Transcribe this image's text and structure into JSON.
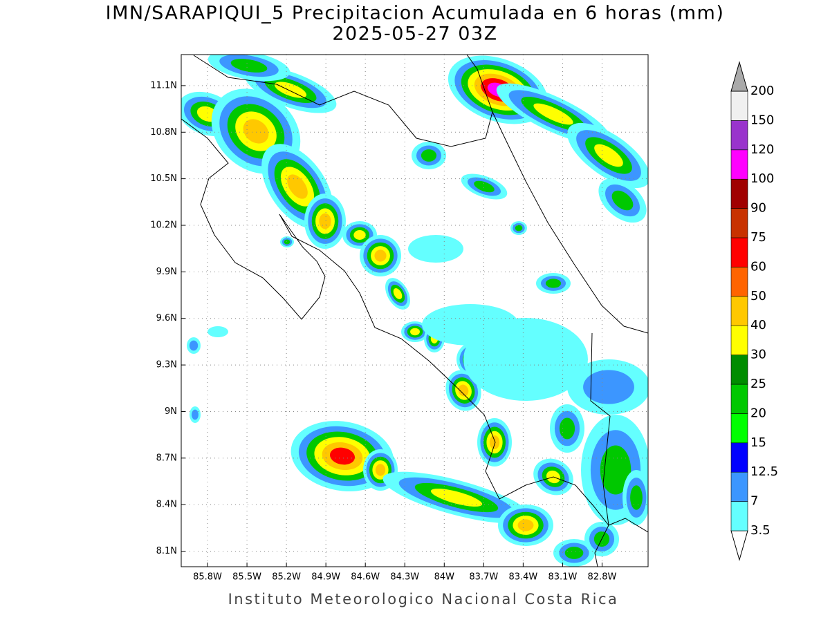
{
  "title": "IMN/SARAPIQUI_5 Precipitacion Acumulada en 6 horas (mm)",
  "subtitle": "2025-05-27 03Z",
  "footer": "Instituto Meteorologico Nacional Costa Rica",
  "map": {
    "lat_range": [
      8.0,
      11.3
    ],
    "lon_range": [
      -86.0,
      -82.45
    ],
    "lat_ticks": [
      {
        "value": 11.1,
        "label": "11.1N"
      },
      {
        "value": 10.8,
        "label": "10.8N"
      },
      {
        "value": 10.5,
        "label": "10.5N"
      },
      {
        "value": 10.2,
        "label": "10.2N"
      },
      {
        "value": 9.9,
        "label": "9.9N"
      },
      {
        "value": 9.6,
        "label": "9.6N"
      },
      {
        "value": 9.3,
        "label": "9.3N"
      },
      {
        "value": 9.0,
        "label": "9N"
      },
      {
        "value": 8.7,
        "label": "8.7N"
      },
      {
        "value": 8.4,
        "label": "8.4N"
      },
      {
        "value": 8.1,
        "label": "8.1N"
      }
    ],
    "lon_ticks": [
      {
        "value": -85.8,
        "label": "85.8W"
      },
      {
        "value": -85.5,
        "label": "85.5W"
      },
      {
        "value": -85.2,
        "label": "85.2W"
      },
      {
        "value": -84.9,
        "label": "84.9W"
      },
      {
        "value": -84.6,
        "label": "84.6W"
      },
      {
        "value": -84.3,
        "label": "84.3W"
      },
      {
        "value": -84.0,
        "label": "84W"
      },
      {
        "value": -83.7,
        "label": "83.7W"
      },
      {
        "value": -83.4,
        "label": "83.4W"
      },
      {
        "value": -83.1,
        "label": "83.1W"
      },
      {
        "value": -82.8,
        "label": "82.8W"
      }
    ],
    "grid": true
  },
  "colorbar": {
    "levels": [
      3.5,
      7,
      12.5,
      15,
      20,
      25,
      30,
      40,
      50,
      60,
      75,
      90,
      100,
      120,
      150,
      200
    ],
    "colors": [
      "#ffffff",
      "#64ffff",
      "#3c96ff",
      "#0000ff",
      "#00ff00",
      "#00c800",
      "#008c00",
      "#ffff00",
      "#ffc800",
      "#ff6400",
      "#ff0000",
      "#c83200",
      "#a00000",
      "#ff00ff",
      "#9933cc",
      "#f0f0f0",
      "#aaaaaa"
    ]
  }
}
